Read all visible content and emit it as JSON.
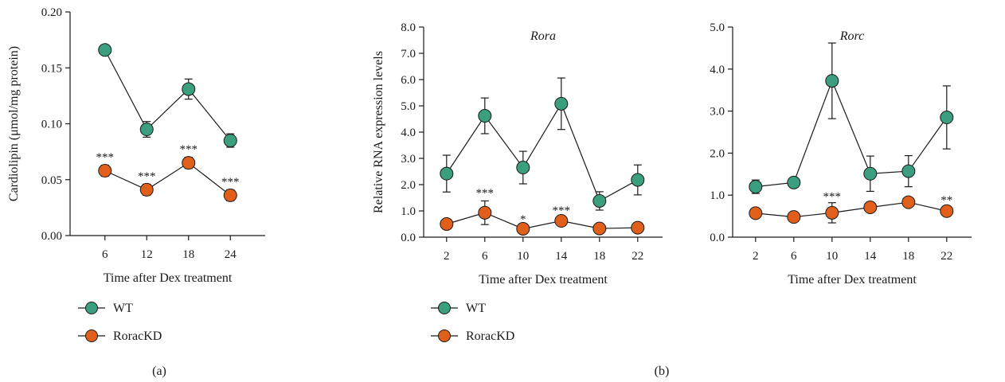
{
  "colors": {
    "wt": "#3a9e7f",
    "kd": "#e0601b",
    "axis": "#1a1a1a"
  },
  "legend_a": {
    "wt_label": "WT",
    "kd_label": "RoracKD"
  },
  "legend_b": {
    "wt_label": "WT",
    "kd_label": "RoracKD"
  },
  "captions": {
    "a": "(a)",
    "b": "(b)"
  },
  "chart_data": [
    {
      "type": "line",
      "title": "",
      "xlabel": "Time after Dex treatment",
      "ylabel": "Cardiolipin (μmol/mg protein)",
      "x": [
        6,
        12,
        18,
        24
      ],
      "xlim": [
        1,
        29
      ],
      "ylim": [
        0,
        0.2
      ],
      "yticks": [
        0,
        0.05,
        0.1,
        0.15,
        0.2
      ],
      "ytick_labels": [
        "0.00",
        "0.05",
        "0.10",
        "0.15",
        "0.20"
      ],
      "xtick_labels": [
        "6",
        "12",
        "18",
        "24"
      ],
      "series": [
        {
          "name": "WT",
          "key": "wt",
          "values": [
            0.166,
            0.095,
            0.131,
            0.085
          ],
          "errors": [
            0.004,
            0.007,
            0.009,
            0.006
          ]
        },
        {
          "name": "RoracKD",
          "key": "kd",
          "values": [
            0.058,
            0.041,
            0.065,
            0.036
          ],
          "errors": [
            0.005,
            0.005,
            0.005,
            0.005
          ]
        }
      ],
      "annotations": [
        {
          "x": 6,
          "y": 0.067,
          "text": "***"
        },
        {
          "x": 12,
          "y": 0.05,
          "text": "***"
        },
        {
          "x": 18,
          "y": 0.074,
          "text": "***"
        },
        {
          "x": 24,
          "y": 0.045,
          "text": "***"
        }
      ],
      "grid": false
    },
    {
      "type": "line",
      "title": "Rora",
      "xlabel": "Time after Dex treatment",
      "ylabel": "Relative RNA expression levels",
      "x": [
        2,
        6,
        10,
        14,
        18,
        22
      ],
      "xlim": [
        -0.4,
        24.6
      ],
      "ylim": [
        0,
        8
      ],
      "yticks": [
        0,
        1,
        2,
        3,
        4,
        5,
        6,
        7,
        8
      ],
      "ytick_labels": [
        "0.0",
        "1.0",
        "2.0",
        "3.0",
        "4.0",
        "5.0",
        "6.0",
        "7.0",
        "8.0"
      ],
      "xtick_labels": [
        "2",
        "6",
        "10",
        "14",
        "18",
        "22"
      ],
      "series": [
        {
          "name": "WT",
          "key": "wt",
          "values": [
            2.42,
            4.62,
            2.65,
            5.08,
            1.38,
            2.18
          ],
          "errors": [
            0.7,
            0.68,
            0.62,
            0.98,
            0.35,
            0.57
          ]
        },
        {
          "name": "RoracKD",
          "key": "kd",
          "values": [
            0.5,
            0.93,
            0.32,
            0.62,
            0.33,
            0.36
          ],
          "errors": [
            0.12,
            0.45,
            0.08,
            0.1,
            0.08,
            0.08
          ]
        }
      ],
      "annotations": [
        {
          "x": 6,
          "y": 1.55,
          "text": "***"
        },
        {
          "x": 10,
          "y": 0.55,
          "text": "*"
        },
        {
          "x": 14,
          "y": 0.88,
          "text": "***"
        }
      ],
      "grid": false
    },
    {
      "type": "line",
      "title": "Rorc",
      "xlabel": "Time after Dex treatment",
      "ylabel": "",
      "x": [
        2,
        6,
        10,
        14,
        18,
        22
      ],
      "xlim": [
        -0.4,
        24.6
      ],
      "ylim": [
        0,
        5
      ],
      "yticks": [
        0,
        1,
        2,
        3,
        4,
        5
      ],
      "ytick_labels": [
        "0.0",
        "1.0",
        "2.0",
        "3.0",
        "4.0",
        "5.0"
      ],
      "xtick_labels": [
        "2",
        "6",
        "10",
        "14",
        "18",
        "22"
      ],
      "series": [
        {
          "name": "WT",
          "key": "wt",
          "values": [
            1.2,
            1.3,
            3.72,
            1.51,
            1.57,
            2.85
          ],
          "errors": [
            0.16,
            0.1,
            0.9,
            0.42,
            0.37,
            0.75
          ]
        },
        {
          "name": "RoracKD",
          "key": "kd",
          "values": [
            0.57,
            0.48,
            0.58,
            0.71,
            0.83,
            0.62
          ],
          "errors": [
            0.07,
            0.06,
            0.24,
            0.08,
            0.08,
            0.1
          ]
        }
      ],
      "annotations": [
        {
          "x": 10,
          "y": 0.88,
          "text": "***"
        },
        {
          "x": 22,
          "y": 0.8,
          "text": "**"
        }
      ],
      "grid": false
    }
  ]
}
